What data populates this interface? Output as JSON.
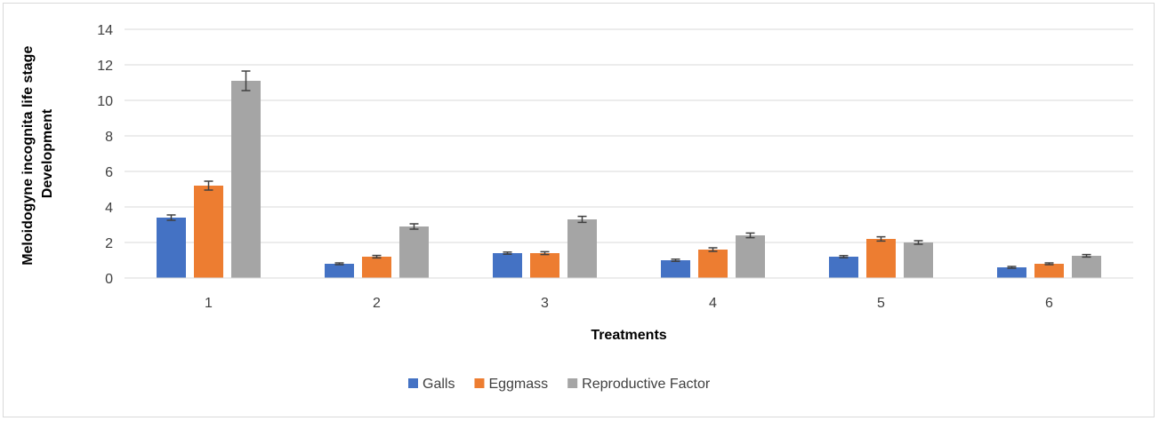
{
  "chart_data": {
    "type": "bar",
    "title": "",
    "xlabel": "Treatments",
    "ylabel_lines": [
      "Meloidogyne incognita life stage",
      "Development"
    ],
    "categories": [
      "1",
      "2",
      "3",
      "4",
      "5",
      "6"
    ],
    "ylim": [
      0,
      14
    ],
    "yticks": [
      "0",
      "2",
      "4",
      "6",
      "8",
      "10",
      "12",
      "14"
    ],
    "grid": true,
    "legend_position": "bottom",
    "series": [
      {
        "name": "Galls",
        "color": "#4472c4",
        "values": [
          3.4,
          0.8,
          1.4,
          1.0,
          1.2,
          0.6
        ],
        "errors": [
          0.15,
          0.05,
          0.06,
          0.06,
          0.06,
          0.05
        ]
      },
      {
        "name": "Eggmass",
        "color": "#ed7d31",
        "values": [
          5.2,
          1.2,
          1.4,
          1.6,
          2.2,
          0.8
        ],
        "errors": [
          0.25,
          0.07,
          0.08,
          0.1,
          0.12,
          0.05
        ]
      },
      {
        "name": "Reproductive Factor",
        "color": "#a5a5a5",
        "values": [
          11.1,
          2.9,
          3.3,
          2.4,
          2.0,
          1.25
        ],
        "errors": [
          0.55,
          0.15,
          0.17,
          0.13,
          0.1,
          0.07
        ]
      }
    ]
  }
}
